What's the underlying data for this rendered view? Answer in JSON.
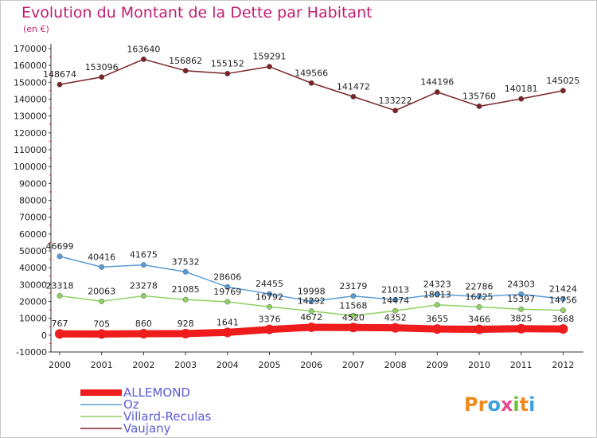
{
  "title": "Evolution du Montant de la Dette par Habitant",
  "unit": "(en €)",
  "brand": {
    "parts": [
      "Pr",
      "o",
      "x",
      "i",
      "t",
      "i"
    ]
  },
  "chart_data": {
    "type": "line",
    "x": [
      "2000",
      "2001",
      "2002",
      "2003",
      "2004",
      "2005",
      "2006",
      "2007",
      "2008",
      "2009",
      "2010",
      "2011",
      "2012"
    ],
    "ylim": [
      -10000,
      170000
    ],
    "yticks": [
      -10000,
      0,
      10000,
      20000,
      30000,
      40000,
      50000,
      60000,
      70000,
      80000,
      90000,
      100000,
      110000,
      120000,
      130000,
      140000,
      150000,
      160000,
      170000
    ],
    "grid": false,
    "legend_position": "bottom-left",
    "series": [
      {
        "name": "Vaujany",
        "color": "#7b2428",
        "values": [
          148674,
          153096,
          163640,
          156862,
          155152,
          159291,
          149566,
          141472,
          133222,
          144196,
          135760,
          140181,
          145025
        ],
        "labels": [
          "148674",
          "153096",
          "163640",
          "156862",
          "155152",
          "159291",
          "149566",
          "141472",
          "133222",
          "144196",
          "135760",
          "140181",
          "145025"
        ]
      },
      {
        "name": "Oz",
        "color": "#5b9bd5",
        "values": [
          46699,
          40416,
          41675,
          37532,
          28606,
          24455,
          19998,
          23179,
          21013,
          24323,
          22786,
          24303,
          21424
        ],
        "labels": [
          "46699",
          "40416",
          "41675",
          "37532",
          "28606",
          "24455",
          "19998",
          "23179",
          "21013",
          "24323",
          "22786",
          "24303",
          "21424"
        ]
      },
      {
        "name": "Villard-Reculas",
        "color": "#8fd163",
        "values": [
          23318,
          20063,
          23278,
          21085,
          19769,
          16792,
          14292,
          11568,
          14474,
          18013,
          16725,
          15397,
          14756
        ],
        "labels": [
          "23318",
          "20063",
          "23278",
          "21085",
          "19769",
          "16792",
          "14292",
          "11568",
          "14474",
          "18013",
          "16725",
          "15397",
          "14756"
        ]
      },
      {
        "name": "ALLEMOND",
        "color": "#ee1c1c",
        "values": [
          767,
          705,
          860,
          928,
          1641,
          3376,
          4672,
          4520,
          4352,
          3655,
          3466,
          3825,
          3668
        ],
        "labels": [
          "767",
          "705",
          "860",
          "928",
          "1641",
          "3376",
          "4672",
          "4520",
          "4352",
          "3655",
          "3466",
          "3825",
          "3668"
        ]
      }
    ],
    "legend": [
      "ALLEMOND",
      "Oz",
      "Villard-Reculas",
      "Vaujany"
    ]
  }
}
